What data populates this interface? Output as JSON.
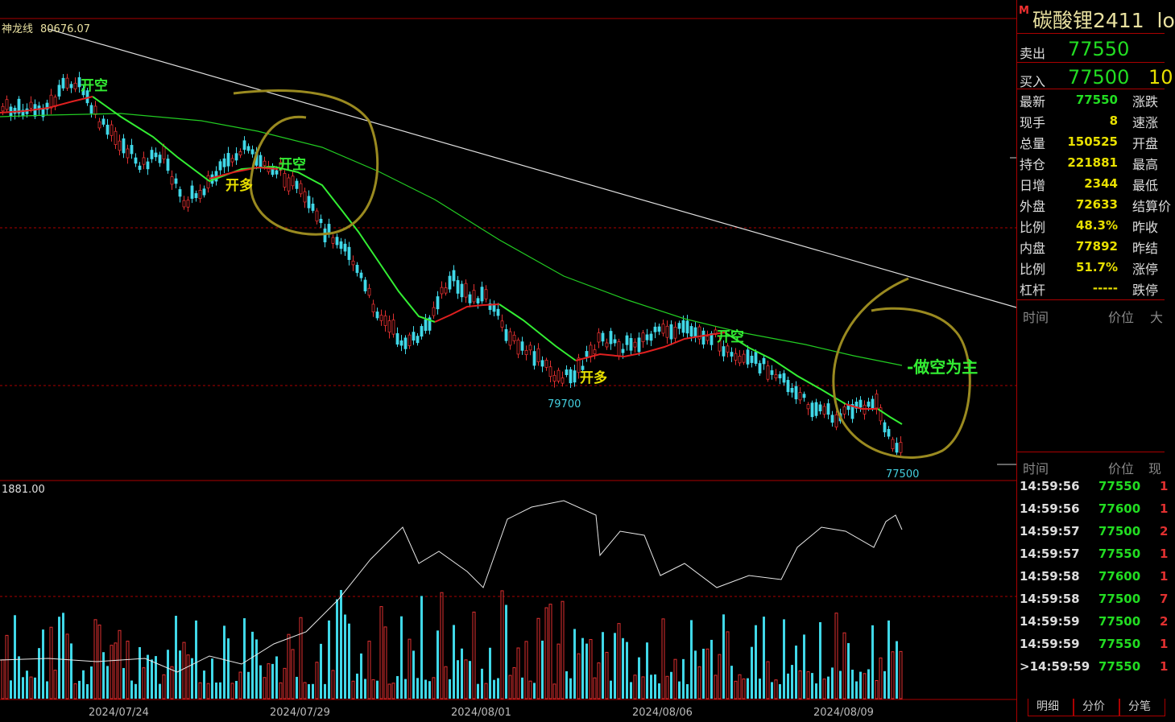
{
  "chart_data": {
    "type": "candlestick",
    "indicator_label": "神龙线",
    "indicator_value": "80676.07",
    "volume_label": "1881.00",
    "x_ticks": [
      "2024/07/24",
      "2024/07/29",
      "2024/08/01",
      "2024/08/06",
      "2024/08/09"
    ],
    "low_marker": "79700",
    "last_marker": "77500",
    "annotations": [
      "开空",
      "开空",
      "开多",
      "开多",
      "开空",
      "-做空为主"
    ]
  },
  "panel": {
    "tag": "M",
    "title": "碳酸锂2411",
    "title_suffix": "lo",
    "sell_label": "卖出",
    "sell_price": "77550",
    "buy_label": "买入",
    "buy_price": "77500",
    "buy_volume": "10",
    "quote": [
      {
        "k": "最新",
        "v": "77550",
        "k2": "涨跌",
        "color": "#22dd22"
      },
      {
        "k": "现手",
        "v": "8",
        "k2": "速涨",
        "color": "#e8e000"
      },
      {
        "k": "总量",
        "v": "150525",
        "k2": "开盘",
        "color": "#e8e000"
      },
      {
        "k": "持仓",
        "v": "221881",
        "k2": "最高",
        "color": "#e8e000"
      },
      {
        "k": "日增",
        "v": "2344",
        "k2": "最低",
        "color": "#e8e000"
      },
      {
        "k": "外盘",
        "v": "72633",
        "k2": "结算价",
        "color": "#e8e000"
      },
      {
        "k": "比例",
        "v": "48.3%",
        "k2": "昨收",
        "color": "#e8e000"
      },
      {
        "k": "内盘",
        "v": "77892",
        "k2": "昨结",
        "color": "#e8e000"
      },
      {
        "k": "比例",
        "v": "51.7%",
        "k2": "涨停",
        "color": "#e8e000"
      },
      {
        "k": "杠杆",
        "v": "-----",
        "k2": "跌停",
        "color": "#e8e000"
      }
    ],
    "hdr1": {
      "time": "时间",
      "price": "价位",
      "size": "大"
    },
    "hdr2": {
      "time": "时间",
      "price": "价位",
      "size": "现"
    },
    "ticks": [
      {
        "t": "14:59:56",
        "p": "77550",
        "s": "1"
      },
      {
        "t": "14:59:56",
        "p": "77600",
        "s": "1"
      },
      {
        "t": "14:59:57",
        "p": "77500",
        "s": "2"
      },
      {
        "t": "14:59:57",
        "p": "77550",
        "s": "1"
      },
      {
        "t": "14:59:58",
        "p": "77600",
        "s": "1"
      },
      {
        "t": "14:59:58",
        "p": "77500",
        "s": "7"
      },
      {
        "t": "14:59:59",
        "p": "77500",
        "s": "2"
      },
      {
        "t": "14:59:59",
        "p": "77550",
        "s": "1"
      },
      {
        "t": ">14:59:59",
        "p": "77550",
        "s": "1"
      }
    ],
    "tabs": [
      "明细",
      "分价",
      "分笔"
    ]
  }
}
